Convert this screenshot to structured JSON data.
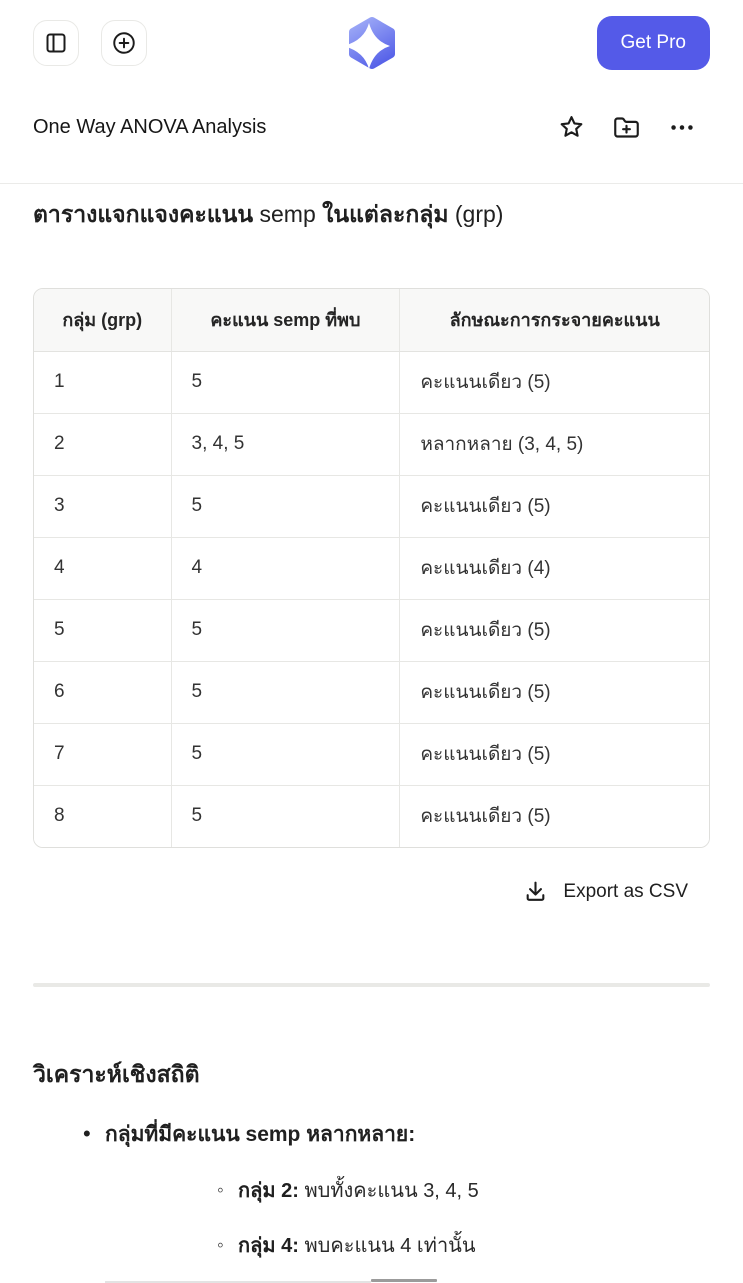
{
  "colors": {
    "accent": "#545AE8",
    "logo_gradient_top": "#9AA6F6",
    "logo_gradient_bottom": "#5560E8",
    "table_border": "#E7E7E4",
    "table_header_bg": "#F8F8F7"
  },
  "topbar": {
    "get_pro_label": "Get Pro",
    "left_icons": [
      "panel-left-icon",
      "new-chat-plus-icon"
    ],
    "center_icon": "sparkle-hexagon-logo"
  },
  "chat_header": {
    "title": "One Way ANOVA Analysis",
    "action_icons": [
      "star-icon",
      "folder-plus-icon",
      "more-options-icon"
    ]
  },
  "document": {
    "heading_segments": [
      {
        "text": "ตารางแจกแจงคะแนน ",
        "bold": true
      },
      {
        "text": "semp",
        "bold": false
      },
      {
        "text": " ในแต่ละกลุ่ม ",
        "bold": true
      },
      {
        "text": "(grp)",
        "bold": false
      }
    ],
    "table": {
      "headers": [
        "กลุ่ม (grp)",
        "คะแนน semp ที่พบ",
        "ลักษณะการกระจายคะแนน"
      ],
      "rows": [
        [
          "1",
          "5",
          "คะแนนเดียว (5)"
        ],
        [
          "2",
          "3, 4, 5",
          "หลากหลาย (3, 4, 5)"
        ],
        [
          "3",
          "5",
          "คะแนนเดียว (5)"
        ],
        [
          "4",
          "4",
          "คะแนนเดียว (4)"
        ],
        [
          "5",
          "5",
          "คะแนนเดียว (5)"
        ],
        [
          "6",
          "5",
          "คะแนนเดียว (5)"
        ],
        [
          "7",
          "5",
          "คะแนนเดียว (5)"
        ],
        [
          "8",
          "5",
          "คะแนนเดียว (5)"
        ]
      ]
    },
    "export_label": "Export as CSV",
    "analysis": {
      "heading": "วิเคราะห์เชิงสถิติ",
      "bullet": "กลุ่มที่มีคะแนน semp หลากหลาย:",
      "sub_bullets": [
        {
          "label": "กลุ่ม 2:",
          "text": " พบทั้งคะแนน 3, 4, 5"
        },
        {
          "label": "กลุ่ม 4:",
          "text": " พบคะแนน 4 เท่านั้น"
        }
      ]
    }
  }
}
